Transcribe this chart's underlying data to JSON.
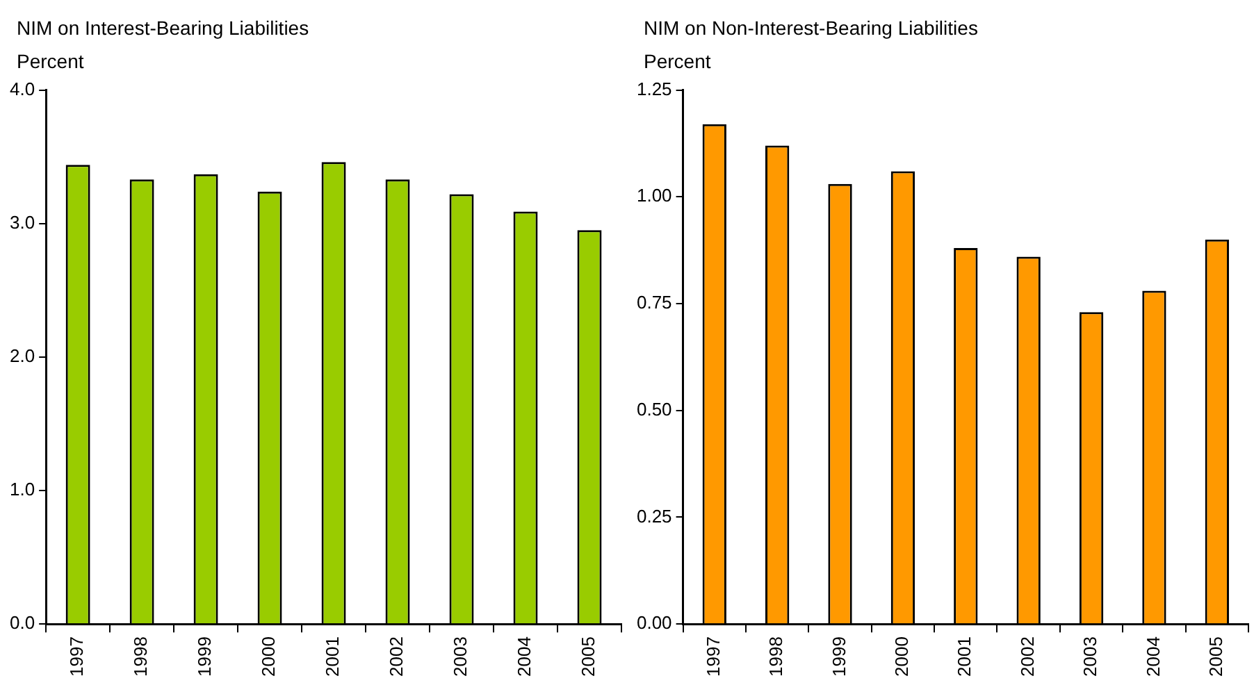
{
  "chart_data": [
    {
      "type": "bar",
      "title": "NIM on Interest-Bearing Liabilities",
      "ylabel": "Percent",
      "categories": [
        "1997",
        "1998",
        "1999",
        "2000",
        "2001",
        "2002",
        "2003",
        "2004",
        "2005"
      ],
      "series": [
        {
          "color": "#99cc00",
          "values": [
            3.44,
            3.33,
            3.37,
            3.24,
            3.46,
            3.33,
            3.22,
            3.09,
            2.95
          ]
        }
      ],
      "ylim": [
        0,
        4
      ],
      "yticks": [
        {
          "value": 0,
          "label": "0.0"
        },
        {
          "value": 1,
          "label": "1.0"
        },
        {
          "value": 2,
          "label": "2.0"
        },
        {
          "value": 3,
          "label": "3.0"
        },
        {
          "value": 4,
          "label": "4.0"
        }
      ],
      "grid": false,
      "legend": false
    },
    {
      "type": "bar",
      "title": "NIM on Non-Interest-Bearing Liabilities",
      "ylabel": "Percent",
      "categories": [
        "1997",
        "1998",
        "1999",
        "2000",
        "2001",
        "2002",
        "2003",
        "2004",
        "2005"
      ],
      "series": [
        {
          "color": "#ff9900",
          "values": [
            1.17,
            1.12,
            1.03,
            1.06,
            0.88,
            0.86,
            0.73,
            0.78,
            0.9
          ]
        }
      ],
      "ylim": [
        0,
        1.25
      ],
      "yticks": [
        {
          "value": 0,
          "label": "0.00"
        },
        {
          "value": 0.25,
          "label": "0.25"
        },
        {
          "value": 0.5,
          "label": "0.50"
        },
        {
          "value": 0.75,
          "label": "0.75"
        },
        {
          "value": 1,
          "label": "1.00"
        },
        {
          "value": 1.25,
          "label": "1.25"
        }
      ],
      "grid": false,
      "legend": false
    }
  ]
}
